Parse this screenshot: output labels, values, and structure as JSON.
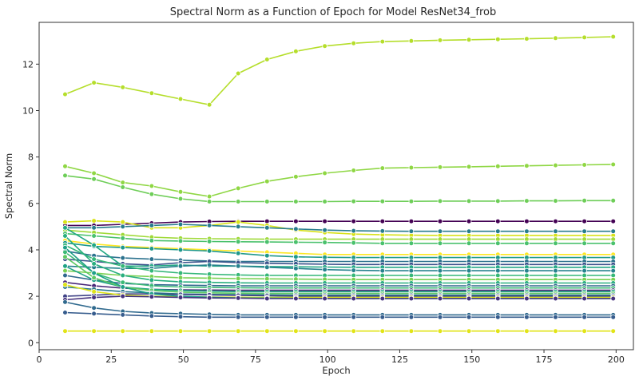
{
  "chart_data": {
    "type": "line",
    "title": "Spectral Norm as a Function of Epoch for Model ResNet34_frob",
    "xlabel": "Epoch",
    "ylabel": "Spectral Norm",
    "xlim": [
      0,
      206
    ],
    "ylim": [
      -0.3,
      13.8
    ],
    "xticks": [
      0,
      25,
      50,
      75,
      100,
      125,
      150,
      175,
      200
    ],
    "yticks": [
      0,
      2,
      4,
      6,
      8,
      10,
      12
    ],
    "grid": false,
    "legend": "none",
    "marker": "circle",
    "x": [
      9,
      19,
      29,
      39,
      49,
      59,
      69,
      79,
      89,
      99,
      109,
      119,
      129,
      139,
      149,
      159,
      169,
      179,
      189,
      199
    ],
    "series": [
      {
        "color": "#b5de2b",
        "values": [
          10.7,
          11.2,
          11.0,
          10.75,
          10.5,
          10.25,
          11.6,
          12.2,
          12.55,
          12.78,
          12.9,
          12.97,
          13.0,
          13.03,
          13.05,
          13.07,
          13.09,
          13.12,
          13.15,
          13.18
        ]
      },
      {
        "color": "#8fd744",
        "values": [
          7.6,
          7.3,
          6.9,
          6.75,
          6.5,
          6.3,
          6.65,
          6.95,
          7.15,
          7.3,
          7.42,
          7.52,
          7.54,
          7.56,
          7.58,
          7.6,
          7.62,
          7.64,
          7.66,
          7.68
        ]
      },
      {
        "color": "#6ece58",
        "values": [
          7.2,
          7.05,
          6.7,
          6.4,
          6.2,
          6.08,
          6.08,
          6.08,
          6.08,
          6.08,
          6.09,
          6.09,
          6.09,
          6.1,
          6.1,
          6.1,
          6.11,
          6.11,
          6.12,
          6.12
        ]
      },
      {
        "color": "#440154",
        "values": [
          5.05,
          5.05,
          5.1,
          5.15,
          5.2,
          5.22,
          5.23,
          5.23,
          5.23,
          5.23,
          5.23,
          5.23,
          5.23,
          5.23,
          5.23,
          5.23,
          5.23,
          5.23,
          5.23,
          5.23
        ]
      },
      {
        "color": "#d8e219",
        "values": [
          5.2,
          5.25,
          5.2,
          4.95,
          4.95,
          5.05,
          5.2,
          5.05,
          4.85,
          4.75,
          4.68,
          4.65,
          4.63,
          4.62,
          4.62,
          4.62,
          4.62,
          4.62,
          4.62,
          4.62
        ]
      },
      {
        "color": "#287d8e",
        "values": [
          4.95,
          4.95,
          5.0,
          5.05,
          5.1,
          5.05,
          5.0,
          4.95,
          4.9,
          4.85,
          4.82,
          4.81,
          4.8,
          4.8,
          4.8,
          4.8,
          4.8,
          4.8,
          4.8,
          4.8
        ]
      },
      {
        "color": "#a0da39",
        "values": [
          4.85,
          4.75,
          4.65,
          4.55,
          4.5,
          4.48,
          4.47,
          4.46,
          4.46,
          4.46,
          4.46,
          4.46,
          4.46,
          4.46,
          4.46,
          4.46,
          4.46,
          4.46,
          4.46,
          4.46
        ]
      },
      {
        "color": "#4ac16d",
        "values": [
          4.7,
          4.6,
          4.5,
          4.4,
          4.38,
          4.36,
          4.35,
          4.34,
          4.33,
          4.32,
          4.3,
          4.28,
          4.28,
          4.28,
          4.28,
          4.28,
          4.28,
          4.28,
          4.28,
          4.28
        ]
      },
      {
        "color": "#fde725",
        "values": [
          4.4,
          4.25,
          4.15,
          4.1,
          4.05,
          4.0,
          3.95,
          3.9,
          3.85,
          3.8,
          3.8,
          3.8,
          3.8,
          3.8,
          3.8,
          3.8,
          3.8,
          3.8,
          3.8,
          3.8
        ]
      },
      {
        "color": "#1f988b",
        "values": [
          4.3,
          4.15,
          4.1,
          4.05,
          4.0,
          3.95,
          3.85,
          3.75,
          3.7,
          3.68,
          3.67,
          3.67,
          3.67,
          3.67,
          3.67,
          3.67,
          3.67,
          3.67,
          3.67,
          3.67
        ]
      },
      {
        "color": "#2c728e",
        "values": [
          3.95,
          3.75,
          3.65,
          3.6,
          3.55,
          3.52,
          3.5,
          3.5,
          3.5,
          3.5,
          3.5,
          3.5,
          3.5,
          3.5,
          3.5,
          3.5,
          3.5,
          3.5,
          3.5,
          3.5
        ]
      },
      {
        "color": "#3b528b",
        "values": [
          3.6,
          3.5,
          3.4,
          3.35,
          3.45,
          3.5,
          3.45,
          3.42,
          3.4,
          3.38,
          3.37,
          3.37,
          3.37,
          3.37,
          3.37,
          3.37,
          3.37,
          3.37,
          3.37,
          3.37
        ]
      },
      {
        "color": "#22a884",
        "values": [
          4.95,
          4.2,
          3.3,
          3.3,
          3.35,
          3.3,
          3.3,
          3.28,
          3.27,
          3.26,
          3.25,
          3.25,
          3.25,
          3.25,
          3.25,
          3.25,
          3.25,
          3.25,
          3.25,
          3.25
        ]
      },
      {
        "color": "#26828e",
        "values": [
          3.3,
          3.25,
          3.2,
          3.2,
          3.3,
          3.35,
          3.3,
          3.25,
          3.2,
          3.15,
          3.12,
          3.1,
          3.1,
          3.1,
          3.1,
          3.1,
          3.1,
          3.1,
          3.1,
          3.1
        ]
      },
      {
        "color": "#35b779",
        "values": [
          4.2,
          3.6,
          3.3,
          3.1,
          3.0,
          2.95,
          2.92,
          2.9,
          2.9,
          2.9,
          2.9,
          2.9,
          2.9,
          2.9,
          2.9,
          2.9,
          2.9,
          2.9,
          2.9,
          2.9
        ]
      },
      {
        "color": "#7ad151",
        "values": [
          3.1,
          3.0,
          2.9,
          2.85,
          2.8,
          2.78,
          2.76,
          2.75,
          2.74,
          2.73,
          2.72,
          2.72,
          2.72,
          2.72,
          2.72,
          2.72,
          2.72,
          2.72,
          2.72,
          2.72
        ]
      },
      {
        "color": "#29af7f",
        "values": [
          4.6,
          3.4,
          2.9,
          2.7,
          2.62,
          2.6,
          2.58,
          2.57,
          2.57,
          2.57,
          2.57,
          2.57,
          2.57,
          2.57,
          2.57,
          2.57,
          2.57,
          2.57,
          2.57,
          2.57
        ]
      },
      {
        "color": "#31688e",
        "values": [
          2.9,
          2.7,
          2.55,
          2.5,
          2.48,
          2.46,
          2.45,
          2.45,
          2.45,
          2.45,
          2.45,
          2.45,
          2.45,
          2.45,
          2.45,
          2.45,
          2.45,
          2.45,
          2.45,
          2.45
        ]
      },
      {
        "color": "#3aba76",
        "values": [
          3.9,
          3.0,
          2.6,
          2.45,
          2.4,
          2.38,
          2.37,
          2.36,
          2.36,
          2.36,
          2.36,
          2.36,
          2.36,
          2.36,
          2.36,
          2.36,
          2.36,
          2.36,
          2.36,
          2.36
        ]
      },
      {
        "color": "#482677",
        "values": [
          2.6,
          2.45,
          2.35,
          2.3,
          2.28,
          2.27,
          2.26,
          2.26,
          2.26,
          2.26,
          2.26,
          2.26,
          2.26,
          2.26,
          2.26,
          2.26,
          2.26,
          2.26,
          2.26,
          2.26
        ]
      },
      {
        "color": "#20a386",
        "values": [
          3.3,
          2.7,
          2.4,
          2.3,
          2.25,
          2.22,
          2.2,
          2.2,
          2.2,
          2.2,
          2.2,
          2.2,
          2.2,
          2.2,
          2.2,
          2.2,
          2.2,
          2.2,
          2.2,
          2.2
        ]
      },
      {
        "color": "#5ec962",
        "values": [
          3.7,
          2.8,
          2.4,
          2.25,
          2.18,
          2.15,
          2.13,
          2.12,
          2.12,
          2.12,
          2.12,
          2.12,
          2.12,
          2.12,
          2.12,
          2.12,
          2.12,
          2.12,
          2.12,
          2.12
        ]
      },
      {
        "color": "#2a788e",
        "values": [
          2.4,
          2.3,
          2.2,
          2.15,
          2.1,
          2.08,
          2.07,
          2.06,
          2.05,
          2.05,
          2.05,
          2.05,
          2.05,
          2.05,
          2.05,
          2.05,
          2.05,
          2.05,
          2.05,
          2.05
        ]
      },
      {
        "color": "#414487",
        "values": [
          2.0,
          2.05,
          2.1,
          2.1,
          2.08,
          2.06,
          2.04,
          2.02,
          2.0,
          2.0,
          2.0,
          2.0,
          2.0,
          2.0,
          2.0,
          2.0,
          2.0,
          2.0,
          2.0,
          2.0
        ]
      },
      {
        "color": "#dde318",
        "values": [
          2.5,
          2.2,
          2.05,
          2.0,
          1.98,
          1.97,
          1.96,
          1.95,
          1.95,
          1.95,
          1.95,
          1.95,
          1.95,
          1.95,
          1.95,
          1.95,
          1.95,
          1.95,
          1.95,
          1.95
        ]
      },
      {
        "color": "#1fa088",
        "values": [
          4.1,
          3.0,
          2.4,
          2.1,
          2.0,
          1.96,
          1.93,
          1.92,
          1.91,
          1.9,
          1.9,
          1.9,
          1.9,
          1.9,
          1.9,
          1.9,
          1.9,
          1.9,
          1.9,
          1.9
        ]
      },
      {
        "color": "#46327e",
        "values": [
          1.85,
          1.95,
          2.0,
          1.98,
          1.95,
          1.93,
          1.92,
          1.9,
          1.9,
          1.9,
          1.9,
          1.9,
          1.9,
          1.9,
          1.9,
          1.9,
          1.9,
          1.9,
          1.9,
          1.9
        ]
      },
      {
        "color": "#306a8e",
        "values": [
          1.75,
          1.5,
          1.35,
          1.28,
          1.25,
          1.22,
          1.2,
          1.2,
          1.2,
          1.2,
          1.2,
          1.2,
          1.2,
          1.2,
          1.2,
          1.2,
          1.2,
          1.2,
          1.2,
          1.2
        ]
      },
      {
        "color": "#365c8d",
        "values": [
          1.3,
          1.25,
          1.2,
          1.15,
          1.12,
          1.1,
          1.1,
          1.1,
          1.1,
          1.1,
          1.1,
          1.1,
          1.1,
          1.1,
          1.1,
          1.1,
          1.1,
          1.1,
          1.1,
          1.1
        ]
      },
      {
        "color": "#e2e418",
        "values": [
          0.5,
          0.5,
          0.5,
          0.5,
          0.5,
          0.5,
          0.5,
          0.5,
          0.5,
          0.5,
          0.5,
          0.5,
          0.5,
          0.5,
          0.5,
          0.5,
          0.5,
          0.5,
          0.5,
          0.5
        ]
      }
    ]
  }
}
